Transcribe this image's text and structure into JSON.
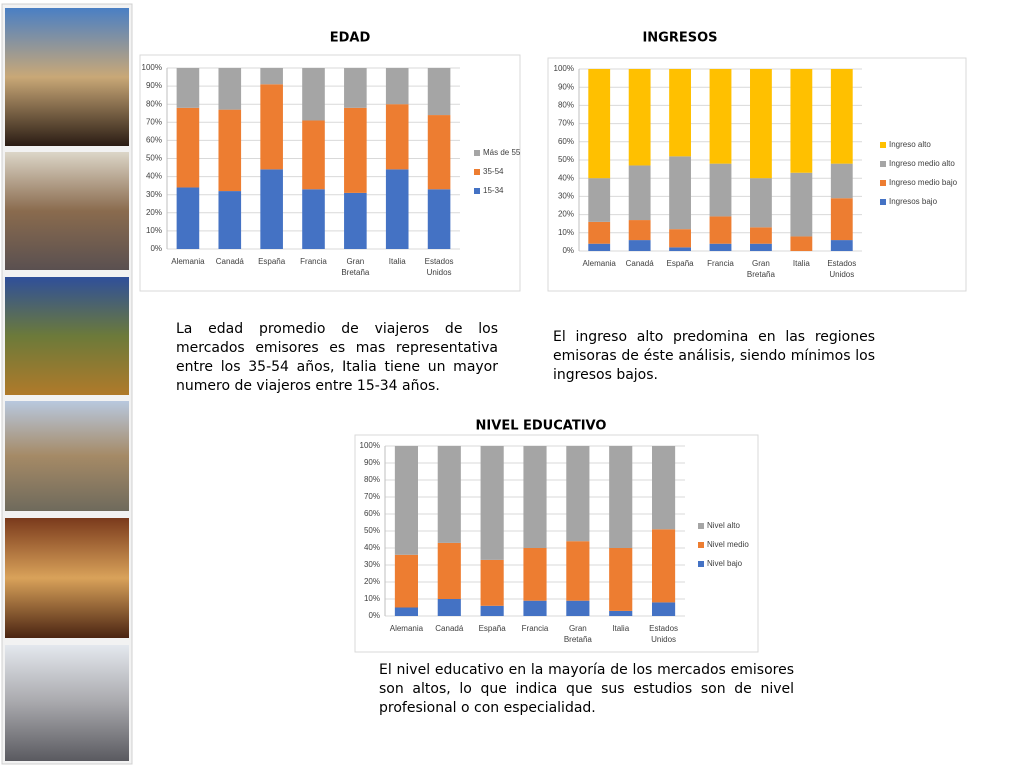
{
  "chart_data": [
    {
      "type": "stacked_bar",
      "title": "EDAD",
      "categories": [
        "Alemania",
        "Canadá",
        "España",
        "Francia",
        "Gran Bretaña",
        "Italia",
        "Estados Unidos"
      ],
      "series": [
        {
          "name": "15-34",
          "color": "#4472c4",
          "values": [
            34,
            32,
            44,
            33,
            31,
            44,
            33
          ]
        },
        {
          "name": "35-54",
          "color": "#ed7d31",
          "values": [
            44,
            45,
            47,
            38,
            47,
            36,
            41
          ]
        },
        {
          "name": "Más de 55",
          "color": "#a5a5a5",
          "values": [
            22,
            23,
            9,
            29,
            22,
            20,
            26
          ]
        }
      ],
      "ylim": [
        0,
        100
      ],
      "yticks": [
        {
          "value": 0,
          "label": "0%"
        },
        {
          "value": 10,
          "label": "10%"
        },
        {
          "value": 20,
          "label": "20%"
        },
        {
          "value": 30,
          "label": "30%"
        },
        {
          "value": 40,
          "label": "40%"
        },
        {
          "value": 50,
          "label": "50%"
        },
        {
          "value": 60,
          "label": "60%"
        },
        {
          "value": 70,
          "label": "70%"
        },
        {
          "value": 80,
          "label": "80%"
        },
        {
          "value": 90,
          "label": "90%"
        },
        {
          "value": 100,
          "label": "100%"
        }
      ],
      "grid": true,
      "legend": "right",
      "description": "La edad promedio de viajeros de los mercados emisores es mas representativa entre los 35-54 años, Italia tiene un mayor numero de viajeros entre 15-34 años."
    },
    {
      "type": "stacked_bar",
      "title": "INGRESOS",
      "categories": [
        "Alemania",
        "Canadá",
        "España",
        "Francia",
        "Gran Bretaña",
        "Italia",
        "Estados Unidos"
      ],
      "series": [
        {
          "name": "Ingresos bajo",
          "color": "#4472c4",
          "values": [
            4,
            6,
            2,
            4,
            4,
            0,
            6
          ]
        },
        {
          "name": "Ingreso medio bajo",
          "color": "#ed7d31",
          "values": [
            12,
            11,
            10,
            15,
            9,
            8,
            23
          ]
        },
        {
          "name": "Ingreso medio alto",
          "color": "#a5a5a5",
          "values": [
            24,
            30,
            40,
            29,
            27,
            35,
            19
          ]
        },
        {
          "name": "Ingreso alto",
          "color": "#ffc000",
          "values": [
            60,
            53,
            48,
            52,
            60,
            57,
            52
          ]
        }
      ],
      "ylim": [
        0,
        100
      ],
      "yticks": [
        {
          "value": 0,
          "label": "0%"
        },
        {
          "value": 10,
          "label": "10%"
        },
        {
          "value": 20,
          "label": "20%"
        },
        {
          "value": 30,
          "label": "30%"
        },
        {
          "value": 40,
          "label": "40%"
        },
        {
          "value": 50,
          "label": "50%"
        },
        {
          "value": 60,
          "label": "60%"
        },
        {
          "value": 70,
          "label": "70%"
        },
        {
          "value": 80,
          "label": "80%"
        },
        {
          "value": 90,
          "label": "90%"
        },
        {
          "value": 100,
          "label": "100%"
        }
      ],
      "grid": true,
      "legend": "right",
      "description": "El ingreso alto predomina en las regiones emisoras de éste análisis, siendo mínimos los ingresos bajos."
    },
    {
      "type": "stacked_bar",
      "title": "NIVEL EDUCATIVO",
      "categories": [
        "Alemania",
        "Canadá",
        "España",
        "Francia",
        "Gran Bretaña",
        "Italia",
        "Estados Unidos"
      ],
      "series": [
        {
          "name": "Nivel bajo",
          "color": "#4472c4",
          "values": [
            5,
            10,
            6,
            9,
            9,
            3,
            8
          ]
        },
        {
          "name": "Nivel medio",
          "color": "#ed7d31",
          "values": [
            31,
            33,
            27,
            31,
            35,
            37,
            43
          ]
        },
        {
          "name": "Nivel alto",
          "color": "#a5a5a5",
          "values": [
            64,
            57,
            67,
            60,
            56,
            60,
            49
          ]
        }
      ],
      "ylim": [
        0,
        100
      ],
      "yticks": [
        {
          "value": 0,
          "label": "0%"
        },
        {
          "value": 10,
          "label": "10%"
        },
        {
          "value": 20,
          "label": "20%"
        },
        {
          "value": 30,
          "label": "30%"
        },
        {
          "value": 40,
          "label": "40%"
        },
        {
          "value": 50,
          "label": "50%"
        },
        {
          "value": 60,
          "label": "60%"
        },
        {
          "value": 70,
          "label": "70%"
        },
        {
          "value": 80,
          "label": "80%"
        },
        {
          "value": 90,
          "label": "90%"
        },
        {
          "value": 100,
          "label": "100%"
        }
      ],
      "grid": true,
      "legend": "right",
      "description": "El nivel educativo en la mayoría de los mercados emisores son altos, lo que indica que sus estudios son de nivel profesional o con especialidad."
    }
  ]
}
